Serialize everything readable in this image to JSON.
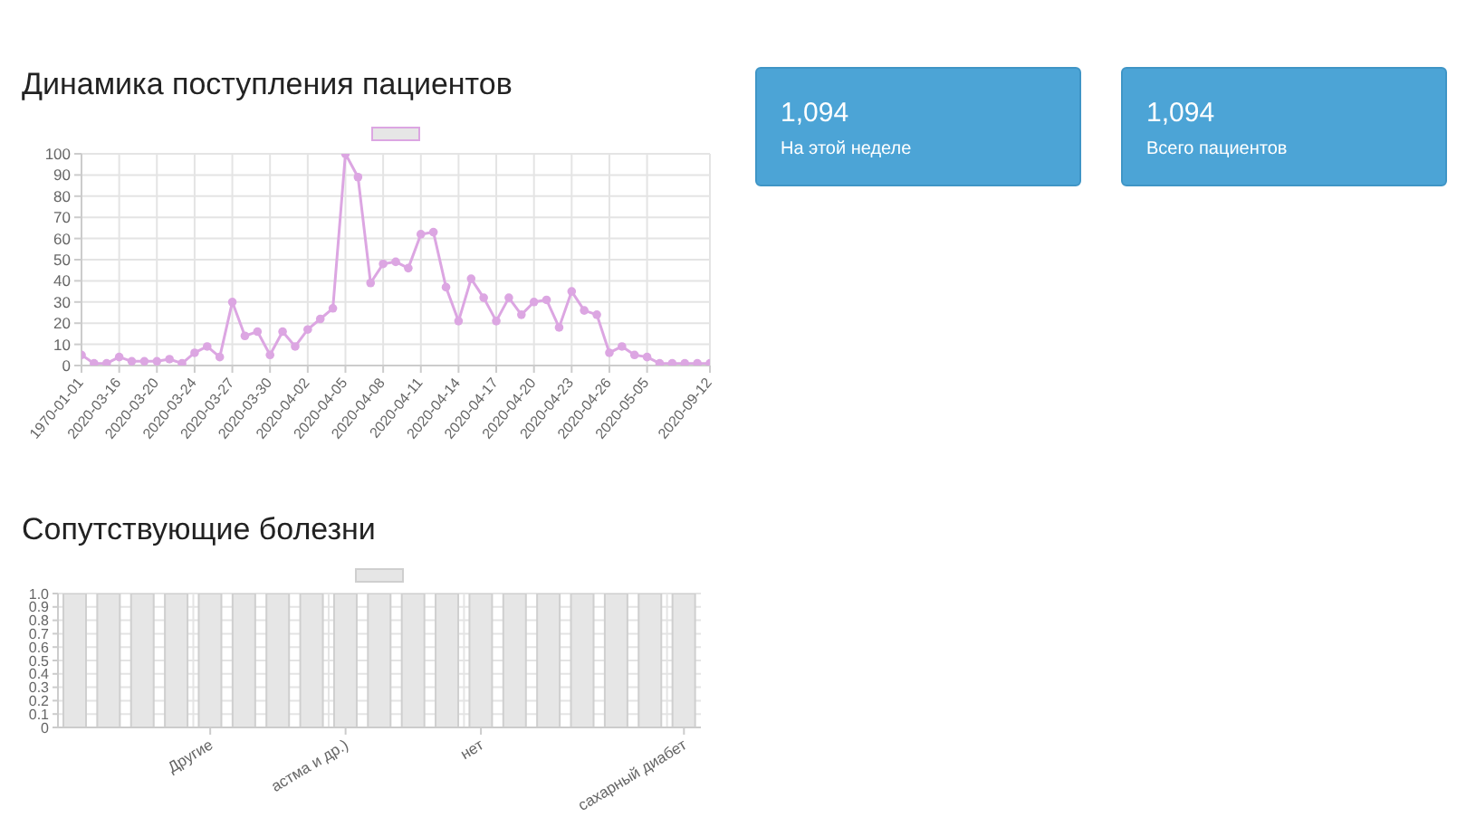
{
  "chart_data": [
    {
      "type": "line",
      "title": "Динамика поступления пациентов",
      "categories": [
        "1970-01-01",
        null,
        null,
        "2020-03-16",
        null,
        null,
        "2020-03-20",
        null,
        null,
        "2020-03-24",
        null,
        null,
        "2020-03-27",
        null,
        null,
        "2020-03-30",
        null,
        null,
        "2020-04-02",
        null,
        null,
        "2020-04-05",
        null,
        null,
        "2020-04-08",
        null,
        null,
        "2020-04-11",
        null,
        null,
        "2020-04-14",
        null,
        null,
        "2020-04-17",
        null,
        null,
        "2020-04-20",
        null,
        null,
        "2020-04-23",
        null,
        null,
        "2020-04-26",
        null,
        null,
        "2020-05-05",
        null,
        null,
        null,
        null,
        "2020-09-12"
      ],
      "values": [
        5,
        1,
        1,
        4,
        2,
        2,
        2,
        3,
        1,
        6,
        9,
        4,
        30,
        14,
        16,
        5,
        16,
        9,
        17,
        22,
        27,
        100,
        89,
        39,
        48,
        49,
        46,
        62,
        63,
        37,
        21,
        41,
        32,
        21,
        32,
        24,
        30,
        31,
        18,
        35,
        26,
        24,
        6,
        9,
        5,
        4,
        1,
        1,
        1,
        1,
        1
      ],
      "color": "#dca6e2",
      "ylim": [
        0,
        100
      ],
      "yticks": [
        0,
        10,
        20,
        30,
        40,
        50,
        60,
        70,
        80,
        90,
        100
      ],
      "grid": true,
      "marker": "circle"
    },
    {
      "type": "other",
      "title": "1,094",
      "subtitle": "На этой неделе"
    },
    {
      "type": "other",
      "title": "1,094",
      "subtitle": "Всего пациентов"
    },
    {
      "type": "bar",
      "title": "Сопутствующие болезни",
      "categories": [
        null,
        null,
        null,
        null,
        "Другие",
        null,
        null,
        null,
        "астма и др.)",
        null,
        null,
        null,
        "нет",
        null,
        null,
        null,
        null,
        null,
        "сахарный диабет"
      ],
      "values": [
        1,
        1,
        1,
        1,
        1,
        1,
        1,
        1,
        1,
        1,
        1,
        1,
        1,
        1,
        1,
        1,
        1,
        1,
        1
      ],
      "color": "#e6e6e6",
      "ylim": [
        0,
        1
      ],
      "yticks": [
        0,
        0.1,
        0.2,
        0.3,
        0.4,
        0.5,
        0.6,
        0.7,
        0.8,
        0.9,
        {
          "value": 1,
          "label": "1.0"
        }
      ],
      "grid": true
    }
  ]
}
